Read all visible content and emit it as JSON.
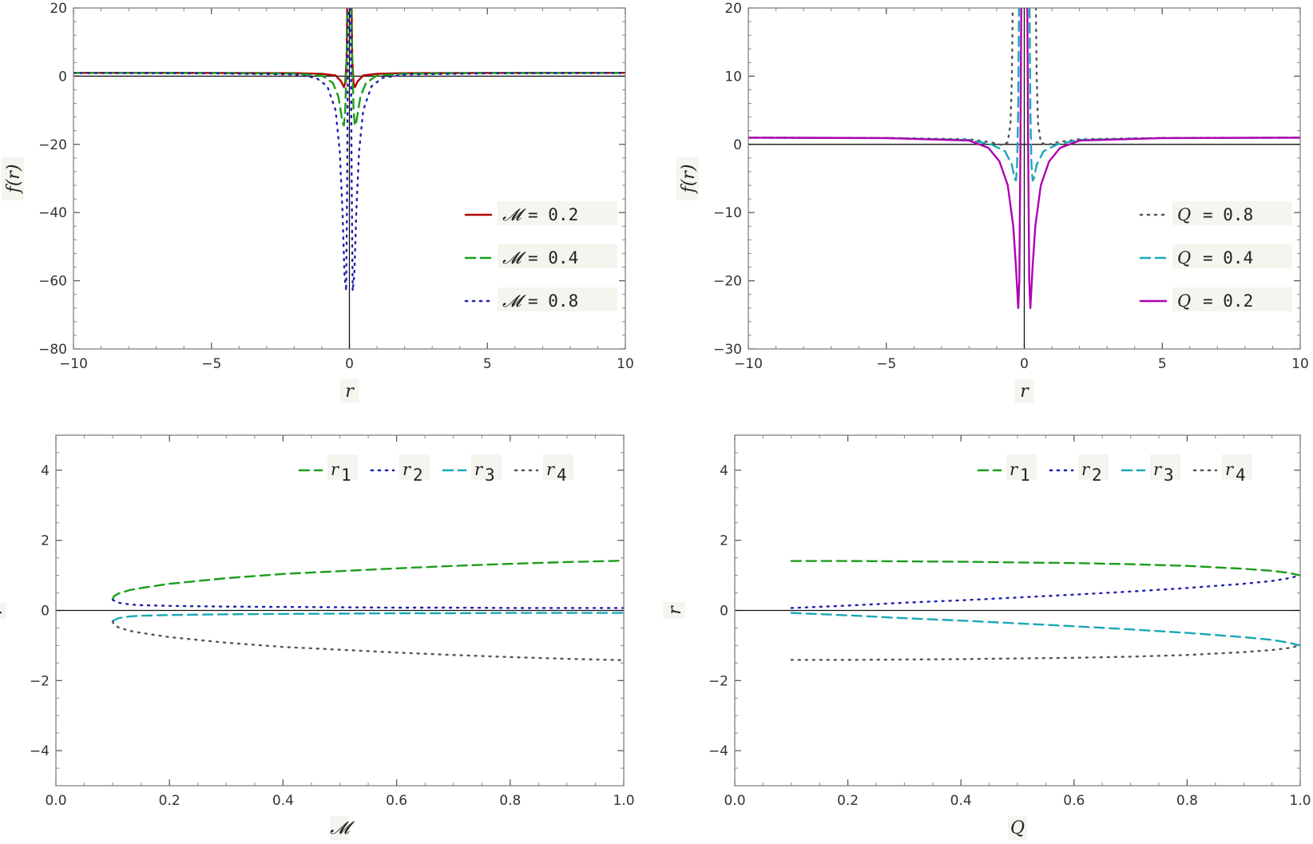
{
  "chart_data": [
    {
      "id": "top-left",
      "type": "line",
      "xlabel": "r",
      "ylabel": "f(r)",
      "xlim": [
        -10,
        10
      ],
      "ylim": [
        -80,
        20
      ],
      "xticks": [
        -10,
        -5,
        0,
        5,
        10
      ],
      "xtick_labels": [
        "−10",
        "−5",
        "0",
        "5",
        "10"
      ],
      "yticks": [
        -80,
        -60,
        -40,
        -20,
        0,
        20
      ],
      "ytick_labels": [
        "−80",
        "−60",
        "−40",
        "−20",
        "0",
        "20"
      ],
      "legend_position": "bottom-right",
      "series": [
        {
          "name": "𝓜 = 0.2",
          "legend_symbol": "𝓜",
          "legend_value": "0.2",
          "color": "#b30000",
          "dash": "solid",
          "x": [
            -10,
            -5,
            -2,
            -1,
            -0.5,
            -0.3,
            -0.2,
            -0.15,
            -0.1,
            -0.08,
            0,
            0.08,
            0.1,
            0.15,
            0.2,
            0.3,
            0.5,
            1,
            2,
            5,
            10
          ],
          "y": [
            0.98,
            0.97,
            0.9,
            0.7,
            0.2,
            -1.5,
            -3.2,
            -2,
            5,
            20,
            null,
            20,
            5,
            -2,
            -3.2,
            -1.5,
            0.2,
            0.7,
            0.9,
            0.97,
            0.98
          ]
        },
        {
          "name": "𝓜 = 0.4",
          "legend_symbol": "𝓜",
          "legend_value": "0.4",
          "color": "#1a9e1a",
          "dash": "dashed",
          "x": [
            -10,
            -5,
            -2,
            -1,
            -0.6,
            -0.4,
            -0.25,
            -0.2,
            -0.15,
            -0.1,
            -0.07,
            0,
            0.07,
            0.1,
            0.15,
            0.2,
            0.25,
            0.4,
            0.6,
            1,
            2,
            5,
            10
          ],
          "y": [
            0.96,
            0.93,
            0.75,
            0.2,
            -2,
            -6,
            -13.5,
            -14.5,
            -10,
            5,
            20,
            null,
            20,
            5,
            -10,
            -14.5,
            -13.5,
            -6,
            -2,
            0.2,
            0.75,
            0.93,
            0.96
          ]
        },
        {
          "name": "𝓜 = 0.8",
          "legend_symbol": "𝓜",
          "legend_value": "0.8",
          "color": "#1f1fb0",
          "dash": "dotted",
          "x": [
            -10,
            -5,
            -2,
            -1.2,
            -0.8,
            -0.5,
            -0.35,
            -0.25,
            -0.18,
            -0.12,
            -0.08,
            -0.05,
            0,
            0.05,
            0.08,
            0.12,
            0.18,
            0.25,
            0.35,
            0.5,
            0.8,
            1.2,
            2,
            5,
            10
          ],
          "y": [
            0.92,
            0.85,
            0.5,
            -0.5,
            -3,
            -10,
            -22,
            -40,
            -58,
            -63,
            -30,
            20,
            null,
            20,
            -30,
            -63,
            -58,
            -40,
            -22,
            -10,
            -3,
            -0.5,
            0.5,
            0.85,
            0.92
          ]
        }
      ]
    },
    {
      "id": "top-right",
      "type": "line",
      "xlabel": "r",
      "ylabel": "f(r)",
      "xlim": [
        -10,
        10
      ],
      "ylim": [
        -30,
        20
      ],
      "xticks": [
        -10,
        -5,
        0,
        5,
        10
      ],
      "xtick_labels": [
        "−10",
        "−5",
        "0",
        "5",
        "10"
      ],
      "yticks": [
        -30,
        -20,
        -10,
        0,
        10,
        20
      ],
      "ytick_labels": [
        "−30",
        "−20",
        "−10",
        "0",
        "10",
        "20"
      ],
      "legend_position": "bottom-right",
      "series": [
        {
          "name": "Q = 0.8",
          "legend_symbol": "Q",
          "legend_value": "0.8",
          "color": "#555555",
          "dash": "dotted",
          "x": [
            -10,
            -5,
            -2,
            -1.2,
            -0.8,
            -0.6,
            -0.5,
            -0.45,
            -0.42,
            0,
            0.42,
            0.45,
            0.5,
            0.6,
            0.8,
            1.2,
            2,
            5,
            10
          ],
          "y": [
            0.98,
            0.95,
            0.75,
            0.3,
            -0.1,
            0.3,
            3,
            10,
            20,
            null,
            20,
            10,
            3,
            0.3,
            -0.1,
            0.3,
            0.75,
            0.95,
            0.98
          ]
        },
        {
          "name": "Q = 0.4",
          "legend_symbol": "Q",
          "legend_value": "0.4",
          "color": "#1aa8b8",
          "dash": "dashed",
          "x": [
            -10,
            -5,
            -2,
            -1.2,
            -0.7,
            -0.45,
            -0.35,
            -0.3,
            -0.26,
            -0.22,
            -0.19,
            0,
            0.19,
            0.22,
            0.26,
            0.3,
            0.35,
            0.45,
            0.7,
            1.2,
            2,
            5,
            10
          ],
          "y": [
            0.98,
            0.94,
            0.65,
            0,
            -1,
            -3,
            -5,
            -5.3,
            -3,
            5,
            20,
            null,
            20,
            5,
            -3,
            -5.3,
            -5,
            -3,
            -1,
            0,
            0.65,
            0.94,
            0.98
          ]
        },
        {
          "name": "Q = 0.2",
          "legend_symbol": "Q",
          "legend_value": "0.2",
          "color": "#b000b0",
          "dash": "solid",
          "x": [
            -10,
            -5,
            -2,
            -1.3,
            -0.9,
            -0.6,
            -0.4,
            -0.3,
            -0.22,
            -0.18,
            -0.14,
            -0.11,
            -0.09,
            0,
            0.09,
            0.11,
            0.14,
            0.18,
            0.22,
            0.3,
            0.4,
            0.6,
            0.9,
            1.3,
            2,
            5,
            10
          ],
          "y": [
            0.98,
            0.93,
            0.55,
            -0.5,
            -2.5,
            -6,
            -12,
            -18,
            -24,
            -20,
            0,
            20,
            20,
            null,
            20,
            20,
            0,
            -20,
            -24,
            -18,
            -12,
            -6,
            -2.5,
            -0.5,
            0.55,
            0.93,
            0.98
          ]
        }
      ]
    },
    {
      "id": "bottom-left",
      "type": "line",
      "xlabel": "𝓜",
      "ylabel": "r",
      "xlim": [
        0,
        1
      ],
      "ylim": [
        -5,
        5
      ],
      "xticks": [
        0,
        0.2,
        0.4,
        0.6,
        0.8,
        1.0
      ],
      "xtick_labels": [
        "0.0",
        "0.2",
        "0.4",
        "0.6",
        "0.8",
        "1.0"
      ],
      "yticks": [
        -4,
        -2,
        0,
        2,
        4
      ],
      "ytick_labels": [
        "−4",
        "−2",
        "0",
        "2",
        "4"
      ],
      "legend_position": "top-right",
      "series": [
        {
          "name": "r1",
          "legend_symbol": "r",
          "legend_sub": "1",
          "color": "#1a9e1a",
          "dash": "dashed",
          "x": [
            0.1,
            0.102,
            0.11,
            0.13,
            0.15,
            0.2,
            0.3,
            0.4,
            0.5,
            0.6,
            0.7,
            0.8,
            0.9,
            1.0
          ],
          "y": [
            0.32,
            0.4,
            0.48,
            0.58,
            0.64,
            0.76,
            0.92,
            1.04,
            1.12,
            1.2,
            1.27,
            1.33,
            1.38,
            1.42
          ]
        },
        {
          "name": "r2",
          "legend_symbol": "r",
          "legend_sub": "2",
          "color": "#1f1fb0",
          "dash": "dotted",
          "x": [
            0.1,
            0.11,
            0.13,
            0.15,
            0.2,
            0.3,
            0.4,
            0.5,
            0.6,
            0.7,
            0.8,
            0.9,
            1.0
          ],
          "y": [
            0.3,
            0.22,
            0.17,
            0.15,
            0.13,
            0.11,
            0.1,
            0.09,
            0.08,
            0.08,
            0.07,
            0.07,
            0.07
          ]
        },
        {
          "name": "r3",
          "legend_symbol": "r",
          "legend_sub": "3",
          "color": "#1aa8b8",
          "dash": "dashed",
          "x": [
            0.1,
            0.11,
            0.13,
            0.15,
            0.2,
            0.3,
            0.4,
            0.5,
            0.6,
            0.7,
            0.8,
            0.9,
            1.0
          ],
          "y": [
            -0.3,
            -0.22,
            -0.17,
            -0.15,
            -0.13,
            -0.11,
            -0.1,
            -0.09,
            -0.08,
            -0.08,
            -0.07,
            -0.07,
            -0.07
          ]
        },
        {
          "name": "r4",
          "legend_symbol": "r",
          "legend_sub": "4",
          "color": "#555555",
          "dash": "dotted",
          "x": [
            0.1,
            0.102,
            0.11,
            0.13,
            0.15,
            0.2,
            0.3,
            0.4,
            0.5,
            0.6,
            0.7,
            0.8,
            0.9,
            1.0
          ],
          "y": [
            -0.32,
            -0.4,
            -0.48,
            -0.58,
            -0.64,
            -0.76,
            -0.92,
            -1.04,
            -1.12,
            -1.2,
            -1.27,
            -1.33,
            -1.38,
            -1.42
          ]
        }
      ]
    },
    {
      "id": "bottom-right",
      "type": "line",
      "xlabel": "Q",
      "ylabel": "r",
      "xlim": [
        0,
        1
      ],
      "ylim": [
        -5,
        5
      ],
      "xticks": [
        0,
        0.2,
        0.4,
        0.6,
        0.8,
        1.0
      ],
      "xtick_labels": [
        "0.0",
        "0.2",
        "0.4",
        "0.6",
        "0.8",
        "1.0"
      ],
      "yticks": [
        -4,
        -2,
        0,
        2,
        4
      ],
      "ytick_labels": [
        "−4",
        "−2",
        "0",
        "2",
        "4"
      ],
      "legend_position": "top-right",
      "series": [
        {
          "name": "r1",
          "legend_symbol": "r",
          "legend_sub": "1",
          "color": "#1a9e1a",
          "dash": "dashed",
          "x": [
            0.1,
            0.2,
            0.3,
            0.4,
            0.5,
            0.6,
            0.7,
            0.8,
            0.9,
            0.95,
            0.98,
            1.0
          ],
          "y": [
            1.41,
            1.41,
            1.4,
            1.39,
            1.37,
            1.35,
            1.32,
            1.27,
            1.19,
            1.13,
            1.07,
            1.0
          ]
        },
        {
          "name": "r2",
          "legend_symbol": "r",
          "legend_sub": "2",
          "color": "#1f1fb0",
          "dash": "dotted",
          "x": [
            0.1,
            0.2,
            0.3,
            0.4,
            0.5,
            0.6,
            0.7,
            0.8,
            0.9,
            0.95,
            0.98,
            1.0
          ],
          "y": [
            0.07,
            0.14,
            0.22,
            0.29,
            0.37,
            0.45,
            0.54,
            0.64,
            0.76,
            0.84,
            0.92,
            1.0
          ]
        },
        {
          "name": "r3",
          "legend_symbol": "r",
          "legend_sub": "3",
          "color": "#1aa8b8",
          "dash": "dashed",
          "x": [
            0.1,
            0.2,
            0.3,
            0.4,
            0.5,
            0.6,
            0.7,
            0.8,
            0.9,
            0.95,
            0.98,
            1.0
          ],
          "y": [
            -0.07,
            -0.14,
            -0.22,
            -0.29,
            -0.37,
            -0.45,
            -0.54,
            -0.64,
            -0.76,
            -0.84,
            -0.92,
            -1.0
          ]
        },
        {
          "name": "r4",
          "legend_symbol": "r",
          "legend_sub": "4",
          "color": "#555555",
          "dash": "dotted",
          "x": [
            0.1,
            0.2,
            0.3,
            0.4,
            0.5,
            0.6,
            0.7,
            0.8,
            0.9,
            0.95,
            0.98,
            1.0
          ],
          "y": [
            -1.41,
            -1.41,
            -1.4,
            -1.39,
            -1.37,
            -1.35,
            -1.32,
            -1.27,
            -1.19,
            -1.13,
            -1.07,
            -1.0
          ]
        }
      ]
    }
  ]
}
